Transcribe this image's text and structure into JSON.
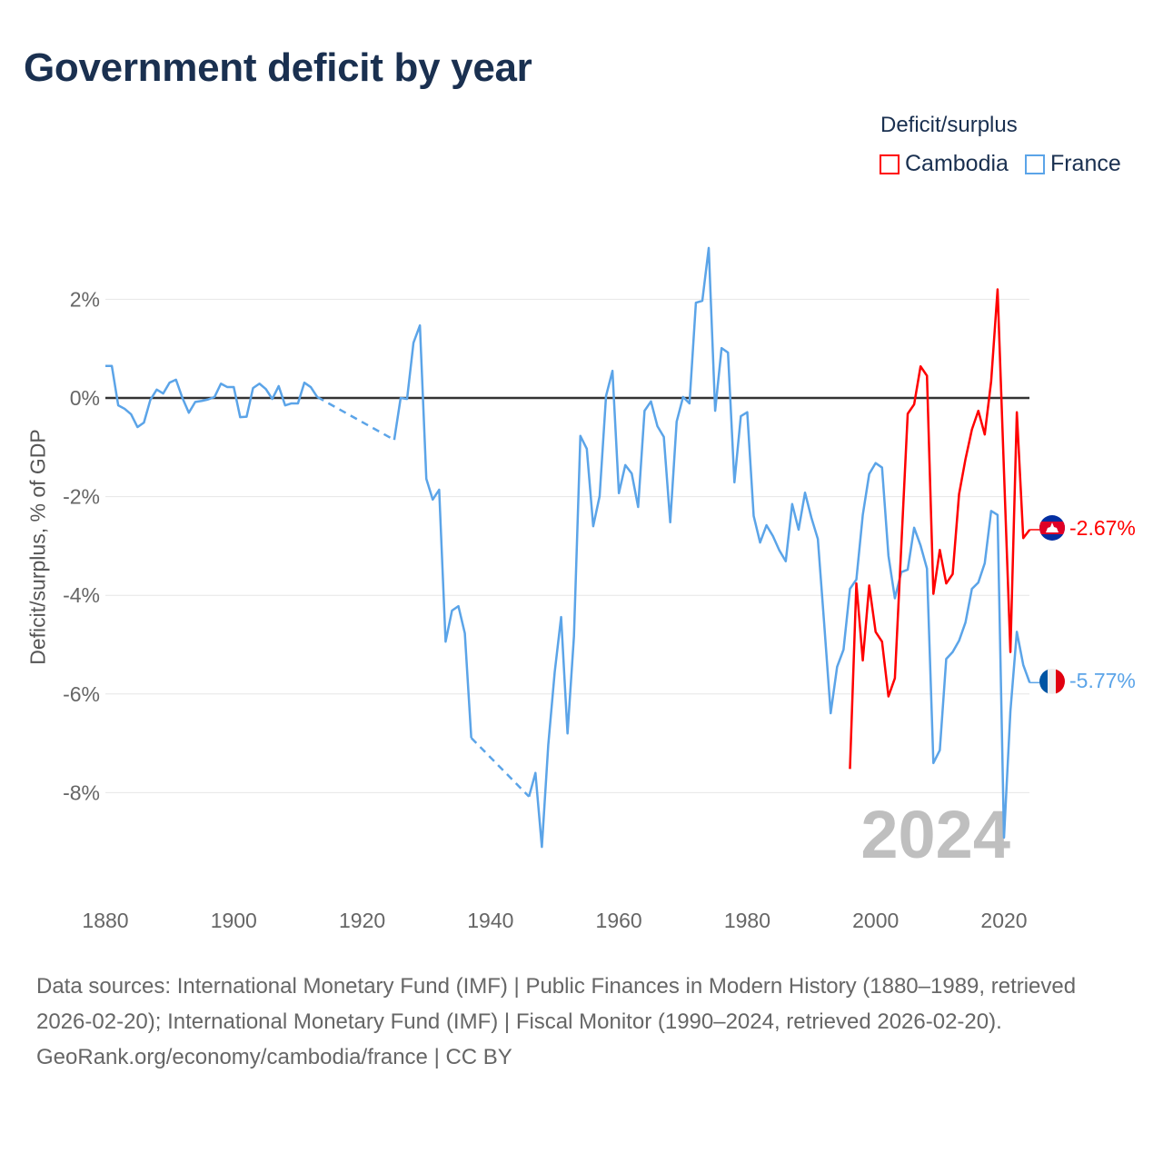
{
  "title": "Government deficit by year",
  "legend": {
    "title": "Deficit/surplus",
    "items": [
      {
        "name": "Cambodia",
        "color": "#ff0000"
      },
      {
        "name": "France",
        "color": "#5ba4e8"
      }
    ]
  },
  "year_watermark": "2024",
  "end_labels": {
    "cambodia": "-2.67%",
    "france": "-5.77%"
  },
  "footer": {
    "sources": "Data sources: International Monetary Fund (IMF) | Public Finances in Modern History (1880–1989, retrieved 2026-02-20); International Monetary Fund (IMF) | Fiscal Monitor (1990–2024, retrieved 2026-02-20).",
    "link": "GeoRank.org/economy/cambodia/france | CC BY"
  },
  "chart_data": {
    "type": "line",
    "title": "Government deficit by year",
    "xlabel": "",
    "ylabel": "Deficit/surplus, % of GDP",
    "xlim": [
      1880,
      2024
    ],
    "ylim": [
      -10,
      3.5
    ],
    "xticks": [
      1880,
      1900,
      1920,
      1940,
      1960,
      1980,
      2000,
      2020
    ],
    "yticks": [
      2,
      0,
      -2,
      -4,
      -6,
      -8
    ],
    "ytick_labels": [
      "2%",
      "0%",
      "-2%",
      "-4%",
      "-6%",
      "-8%"
    ],
    "legend_position": "top-right",
    "series": [
      {
        "name": "France",
        "color": "#5ba4e8",
        "start_year": 1880,
        "values": [
          0.65,
          0.65,
          -0.15,
          -0.22,
          -0.33,
          -0.59,
          -0.5,
          -0.04,
          0.17,
          0.09,
          0.31,
          0.37,
          0,
          -0.3,
          -0.08,
          -0.06,
          -0.03,
          0.02,
          0.29,
          0.22,
          0.22,
          -0.39,
          -0.38,
          0.2,
          0.29,
          0.18,
          -0.02,
          0.24,
          -0.15,
          -0.11,
          -0.11,
          0.31,
          0.22,
          0.02,
          null,
          null,
          null,
          null,
          null,
          null,
          null,
          null,
          null,
          null,
          null,
          -0.85,
          0,
          -0.02,
          1.12,
          1.47,
          -1.64,
          -2.06,
          -1.86,
          -4.94,
          -4.31,
          -4.22,
          -4.77,
          -6.89,
          null,
          null,
          null,
          null,
          null,
          null,
          null,
          null,
          -8.08,
          -7.6,
          -9.1,
          -7.03,
          -5.56,
          -4.44,
          -6.8,
          -4.83,
          -0.77,
          -1.03,
          -2.6,
          -1.99,
          0.04,
          0.55,
          -1.93,
          -1.36,
          -1.53,
          -2.21,
          -0.26,
          -0.07,
          -0.57,
          -0.79,
          -2.52,
          -0.48,
          0.02,
          -0.11,
          1.93,
          1.97,
          3.04,
          -0.26,
          1.01,
          0.92,
          -1.71,
          -0.37,
          -0.29,
          -2.39,
          -2.93,
          -2.58,
          -2.8,
          -3.09,
          -3.31,
          -2.15,
          -2.67,
          -1.92,
          -2.43,
          -2.86,
          -4.6,
          -6.39,
          -5.45,
          -5.1,
          -3.87,
          -3.68,
          -2.37,
          -1.54,
          -1.32,
          -1.41,
          -3.2,
          -4.06,
          -3.53,
          -3.48,
          -2.63,
          -2.99,
          -3.46,
          -7.4,
          -7.14,
          -5.29,
          -5.15,
          -4.92,
          -4.55,
          -3.87,
          -3.74,
          -3.35,
          -2.29,
          -2.37,
          -8.91,
          -6.35,
          -4.74,
          -5.41,
          -5.77
        ]
      },
      {
        "name": "Cambodia",
        "color": "#ff0000",
        "start_year": 1996,
        "values": [
          -7.52,
          -3.76,
          -5.32,
          -3.8,
          -4.74,
          -4.94,
          -6.05,
          -5.68,
          -3.0,
          -0.32,
          -0.13,
          0.64,
          0.45,
          -3.97,
          -3.08,
          -3.76,
          -3.57,
          -1.95,
          -1.24,
          -0.64,
          -0.26,
          -0.74,
          0.34,
          2.2,
          -1.5,
          -5.15,
          -0.29,
          -2.84,
          -2.67
        ]
      }
    ]
  }
}
